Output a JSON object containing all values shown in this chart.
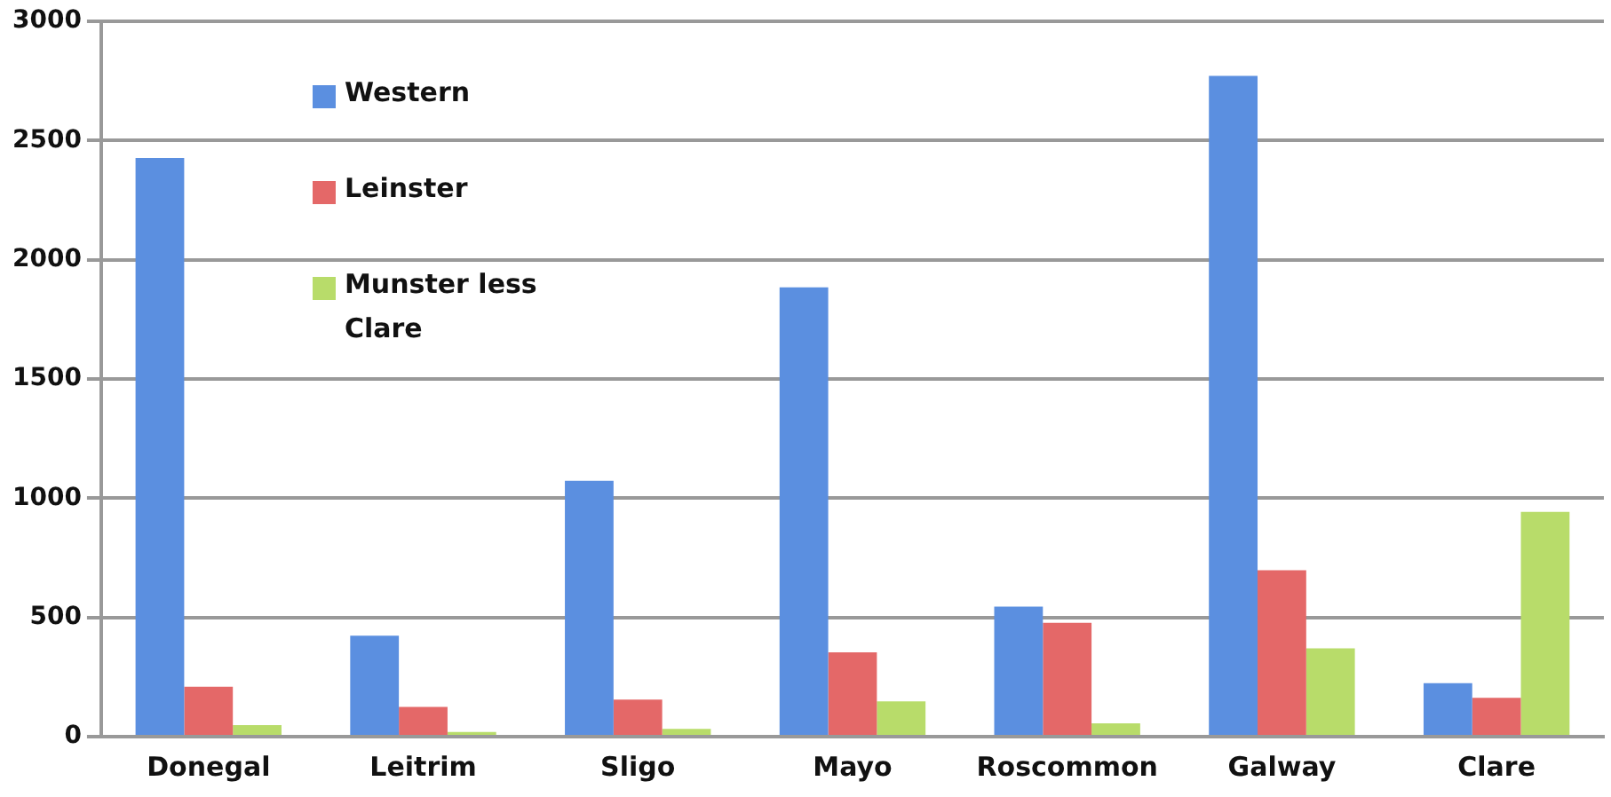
{
  "chart_data": {
    "type": "bar",
    "categories": [
      "Donegal",
      "Leitrim",
      "Sligo",
      "Mayo",
      "Roscommon",
      "Galway",
      "Clare"
    ],
    "series": [
      {
        "name": "Western",
        "color": "#5b8fe0",
        "values": [
          2427,
          423,
          1073,
          1884,
          545,
          2771,
          224
        ]
      },
      {
        "name": "Leinster",
        "color": "#e46868",
        "values": [
          209,
          125,
          155,
          354,
          477,
          698,
          163
        ]
      },
      {
        "name": "Munster less Clare",
        "color": "#b8dc6a",
        "values": [
          48,
          20,
          33,
          148,
          56,
          370,
          943
        ]
      }
    ],
    "ylim": [
      0,
      3000
    ],
    "yticks": [
      0,
      500,
      1000,
      1500,
      2000,
      2500,
      3000
    ],
    "grid": "y",
    "legend": "top left"
  }
}
